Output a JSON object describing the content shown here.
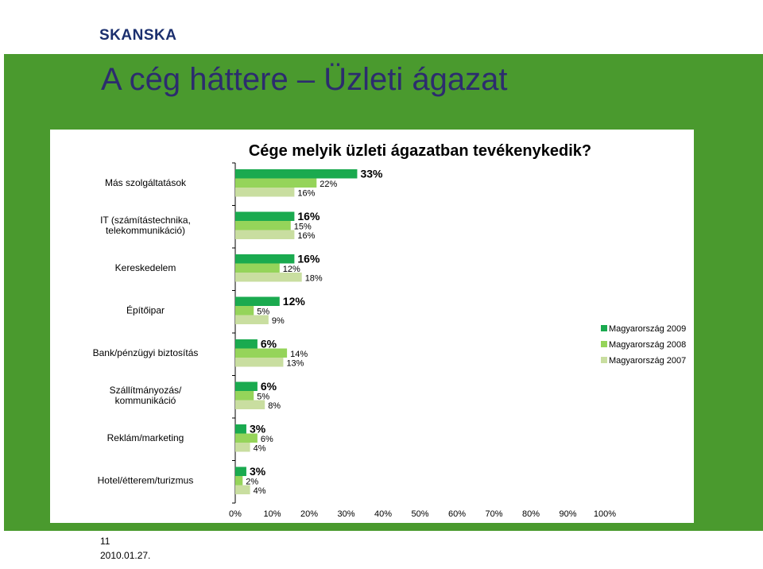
{
  "header": {
    "logo_text": "SKANSKA"
  },
  "slide": {
    "title": "A cég háttere – Üzleti ágazat"
  },
  "footer": {
    "page_number": "11",
    "date": "2010.01.27."
  },
  "colors": {
    "banner": "#4a9a2e",
    "series_2009": "#1aaa4f",
    "series_2008": "#95d45a",
    "series_2007": "#c9dea0",
    "title_text": "#2c2c6e"
  },
  "chart_data": {
    "type": "bar",
    "orientation": "horizontal",
    "title": "Cége melyik üzleti ágazatban tevékenykedik?",
    "categories": [
      "Más szolgáltatások",
      "IT (számítástechnika, telekommunikáció)",
      "Kereskedelem",
      "Építőipar",
      "Bank/pénzügyi biztosítás",
      "Szállítmányozás/ kommunikáció",
      "Reklám/marketing",
      "Hotel/étterem/turizmus"
    ],
    "category_lines": [
      [
        "Más szolgáltatások"
      ],
      [
        "IT (számítástechnika,",
        "telekommunikáció)"
      ],
      [
        "Kereskedelem"
      ],
      [
        "Építőipar"
      ],
      [
        "Bank/pénzügyi biztosítás"
      ],
      [
        "Szállítmányozás/",
        "kommunikáció"
      ],
      [
        "Reklám/marketing"
      ],
      [
        "Hotel/étterem/turizmus"
      ]
    ],
    "series": [
      {
        "name": "Magyarország 2009",
        "color": "#1aaa4f",
        "values": [
          33,
          16,
          16,
          12,
          6,
          6,
          3,
          3
        ]
      },
      {
        "name": "Magyarország 2008",
        "color": "#95d45a",
        "values": [
          22,
          15,
          12,
          5,
          14,
          5,
          6,
          2
        ]
      },
      {
        "name": "Magyarország 2007",
        "color": "#c9dea0",
        "values": [
          16,
          16,
          18,
          9,
          13,
          8,
          4,
          4
        ]
      }
    ],
    "unit": "%",
    "xlim": [
      0,
      100
    ],
    "xticks": [
      "0%",
      "10%",
      "20%",
      "30%",
      "40%",
      "50%",
      "60%",
      "70%",
      "80%",
      "90%",
      "100%"
    ],
    "grid": false,
    "legend_position": "right"
  }
}
